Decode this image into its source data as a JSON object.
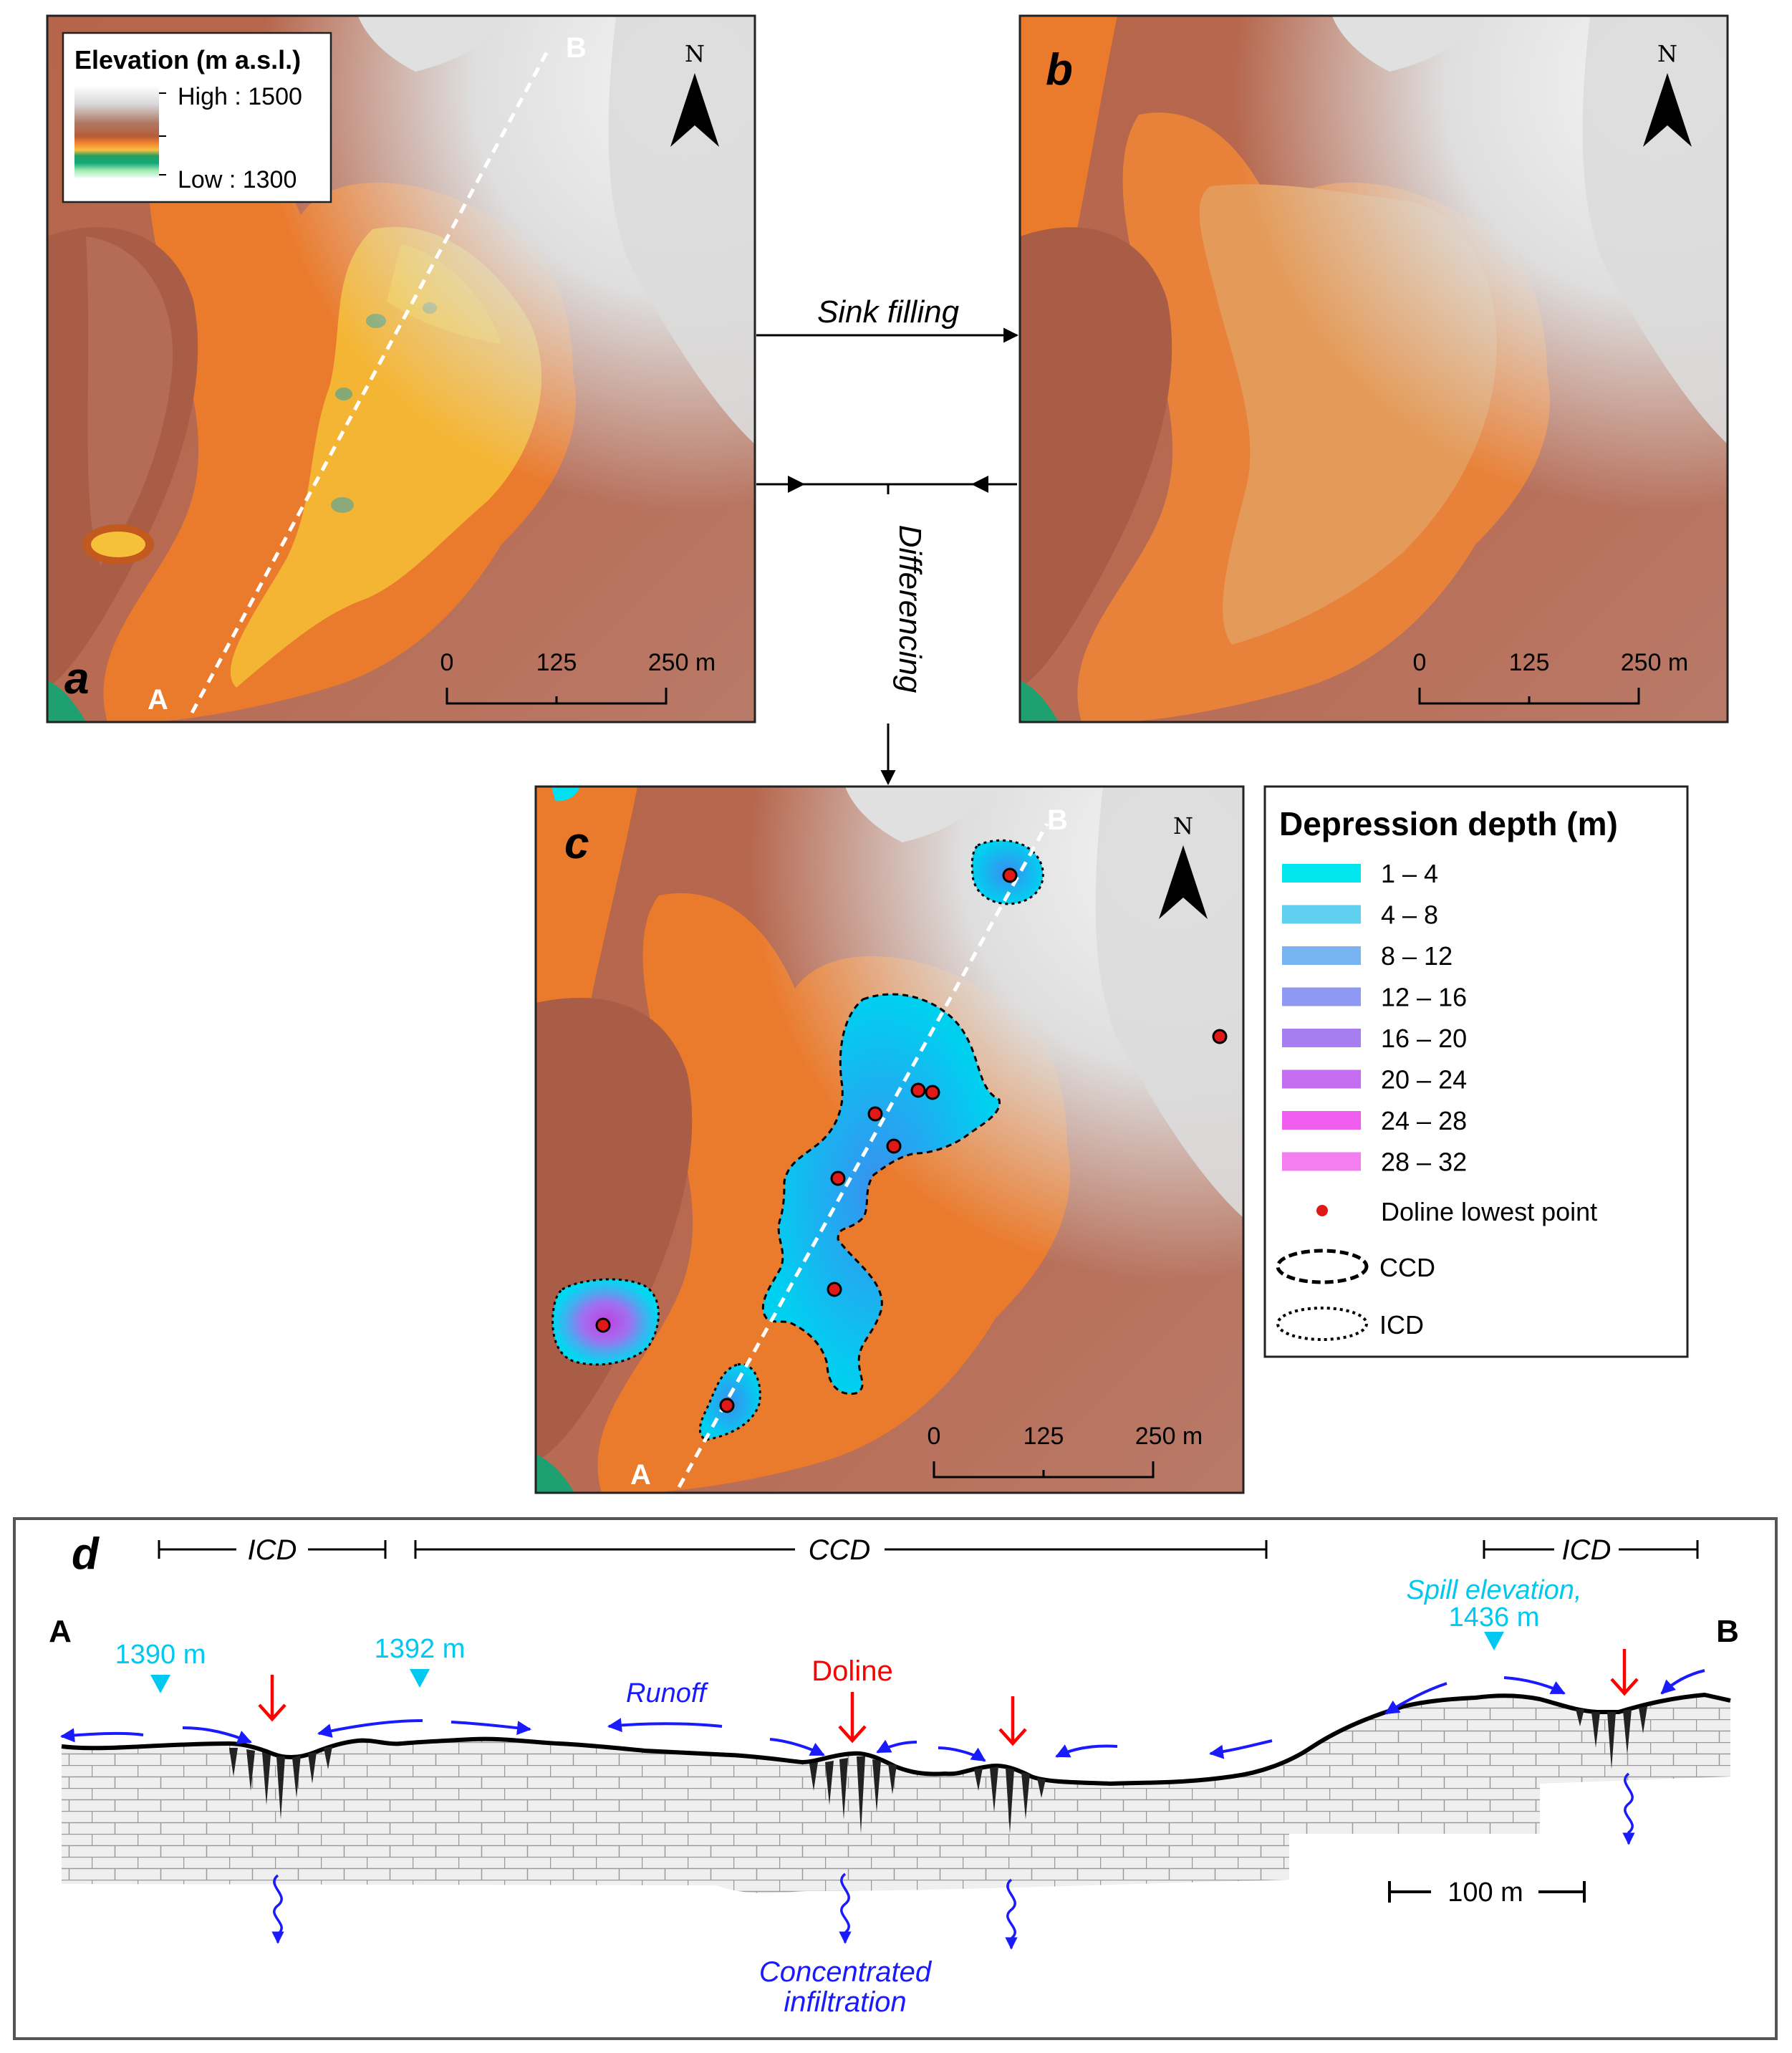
{
  "panel_a": {
    "letter": "a",
    "point_a": "A",
    "point_b": "B",
    "north": "N",
    "legend_title": "Elevation (m a.s.l.)",
    "legend_high": "High : 1500",
    "legend_low": "Low : 1300",
    "scale": [
      "0",
      "125",
      "250 m"
    ]
  },
  "panel_b": {
    "letter": "b",
    "north": "N",
    "scale": [
      "0",
      "125",
      "250 m"
    ]
  },
  "panel_c": {
    "letter": "c",
    "point_a": "A",
    "point_b": "B",
    "north": "N",
    "scale": [
      "0",
      "125",
      "250 m"
    ]
  },
  "flow": {
    "sink_filling": "Sink filling",
    "differencing": "Differencing"
  },
  "depth_legend": {
    "title": "Depression depth (m)",
    "classes": [
      {
        "label": "1 – 4",
        "color": "#00e5ee"
      },
      {
        "label": "4 – 8",
        "color": "#5fd0f0"
      },
      {
        "label": "8 – 12",
        "color": "#79b4f2"
      },
      {
        "label": "12 – 16",
        "color": "#8f98f2"
      },
      {
        "label": "16 – 20",
        "color": "#a67ef0"
      },
      {
        "label": "20 – 24",
        "color": "#c46df0"
      },
      {
        "label": "24 – 28",
        "color": "#f05ef0"
      },
      {
        "label": "28 – 32",
        "color": "#f47ef0"
      }
    ],
    "doline_point": "Doline lowest point",
    "ccd": "CCD",
    "icd": "ICD"
  },
  "panel_d": {
    "letter": "d",
    "icd_left": "ICD",
    "ccd": "CCD",
    "icd_right": "ICD",
    "end_a": "A",
    "end_b": "B",
    "spill_1": "1390 m",
    "spill_2": "1392 m",
    "spill_3_line1": "Spill elevation,",
    "spill_3_line2": "1436 m",
    "runoff": "Runoff",
    "doline": "Doline",
    "infiltration_line1": "Concentrated",
    "infiltration_line2": "infiltration",
    "scale": "100 m"
  },
  "colors": {
    "accent_red": "#ff0000",
    "spill_cyan": "#00c8f0",
    "water_blue": "#1a1aff"
  }
}
